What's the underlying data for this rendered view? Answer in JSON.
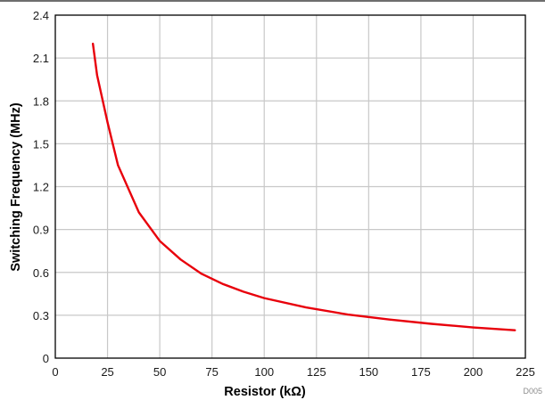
{
  "chart_data": {
    "type": "line",
    "xlabel": "Resistor (kΩ)",
    "ylabel": "Switching Frequency (MHz)",
    "xlim": [
      0,
      225
    ],
    "ylim": [
      0,
      2.4
    ],
    "xticks": [
      "0",
      "25",
      "50",
      "75",
      "100",
      "125",
      "150",
      "175",
      "200",
      "225"
    ],
    "yticks": [
      "0",
      "0.3",
      "0.6",
      "0.9",
      "1.2",
      "1.5",
      "1.8",
      "2.1",
      "2.4"
    ],
    "grid": true,
    "series": [
      {
        "color": "#e8000b",
        "x": [
          18,
          20,
          25,
          30,
          40,
          50,
          60,
          70,
          80,
          90,
          100,
          120,
          140,
          160,
          180,
          200,
          220
        ],
        "y": [
          2.2,
          1.98,
          1.65,
          1.35,
          1.02,
          0.82,
          0.69,
          0.59,
          0.52,
          0.465,
          0.42,
          0.355,
          0.305,
          0.27,
          0.24,
          0.215,
          0.195
        ]
      }
    ],
    "figure_id": "D005"
  },
  "colors": {
    "grid": "#c8c8c8",
    "axis": "#000000",
    "line": "#e8000b",
    "top_rule": "#6e6e6e"
  }
}
